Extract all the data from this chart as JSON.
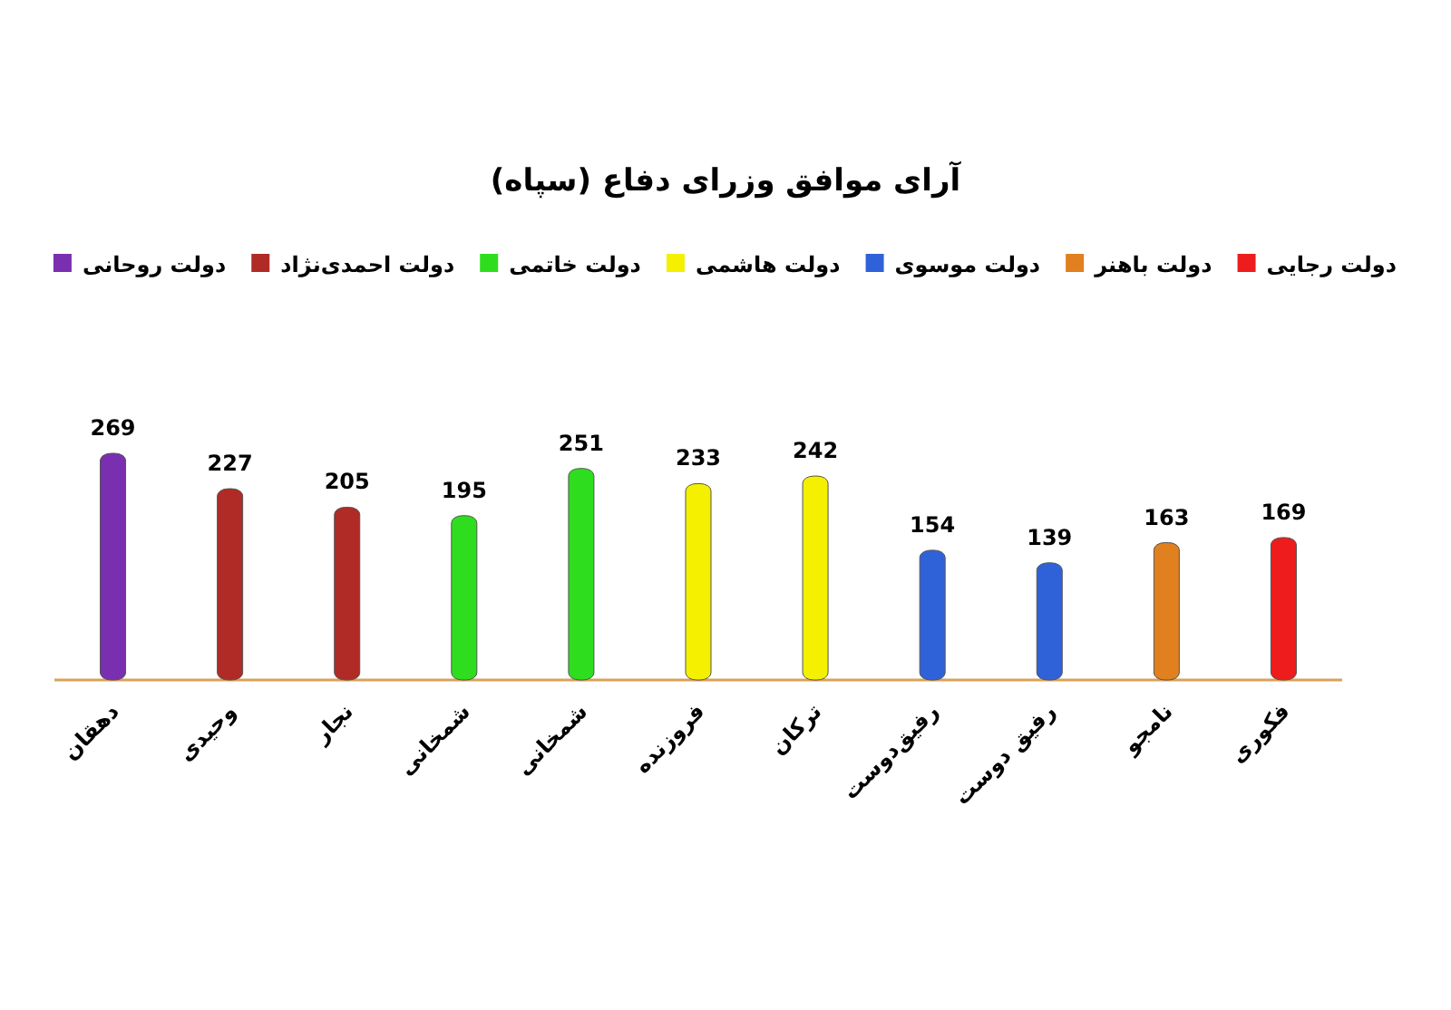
{
  "chart_data": {
    "type": "bar",
    "title": "آرای موافق وزرای دفاع (سپاه)",
    "legend": "top",
    "data_labels": true,
    "categories": [
      "دهقان",
      "وحیدی",
      "نجار",
      "شمخانی",
      "شمخانی",
      "فروزنده",
      "ترکان",
      "رفیق‌دوست",
      "رفیق دوست",
      "نامجو",
      "فکوری"
    ],
    "series": [
      {
        "name": "دولت رجایی",
        "color": "#ee1c1c",
        "values": [
          null,
          null,
          null,
          null,
          null,
          null,
          null,
          null,
          null,
          null,
          169
        ]
      },
      {
        "name": "دولت باهنر",
        "color": "#e0801e",
        "values": [
          null,
          null,
          null,
          null,
          null,
          null,
          null,
          null,
          null,
          163,
          null
        ]
      },
      {
        "name": "دولت موسوی",
        "color": "#2f62d8",
        "values": [
          null,
          null,
          null,
          null,
          null,
          null,
          null,
          154,
          139,
          null,
          null
        ]
      },
      {
        "name": "دولت هاشمی",
        "color": "#f4f000",
        "values": [
          null,
          null,
          null,
          null,
          null,
          233,
          242,
          null,
          null,
          null,
          null
        ]
      },
      {
        "name": "دولت خاتمی",
        "color": "#2ede1e",
        "values": [
          null,
          null,
          null,
          195,
          251,
          null,
          null,
          null,
          null,
          null,
          null
        ]
      },
      {
        "name": "دولت احمدی‌نژاد",
        "color": "#b02a26",
        "values": [
          null,
          227,
          205,
          null,
          null,
          null,
          null,
          null,
          null,
          null,
          null
        ]
      },
      {
        "name": "دولت روحانی",
        "color": "#7a2fb0",
        "values": [
          269,
          null,
          null,
          null,
          null,
          null,
          null,
          null,
          null,
          null,
          null
        ]
      }
    ]
  }
}
